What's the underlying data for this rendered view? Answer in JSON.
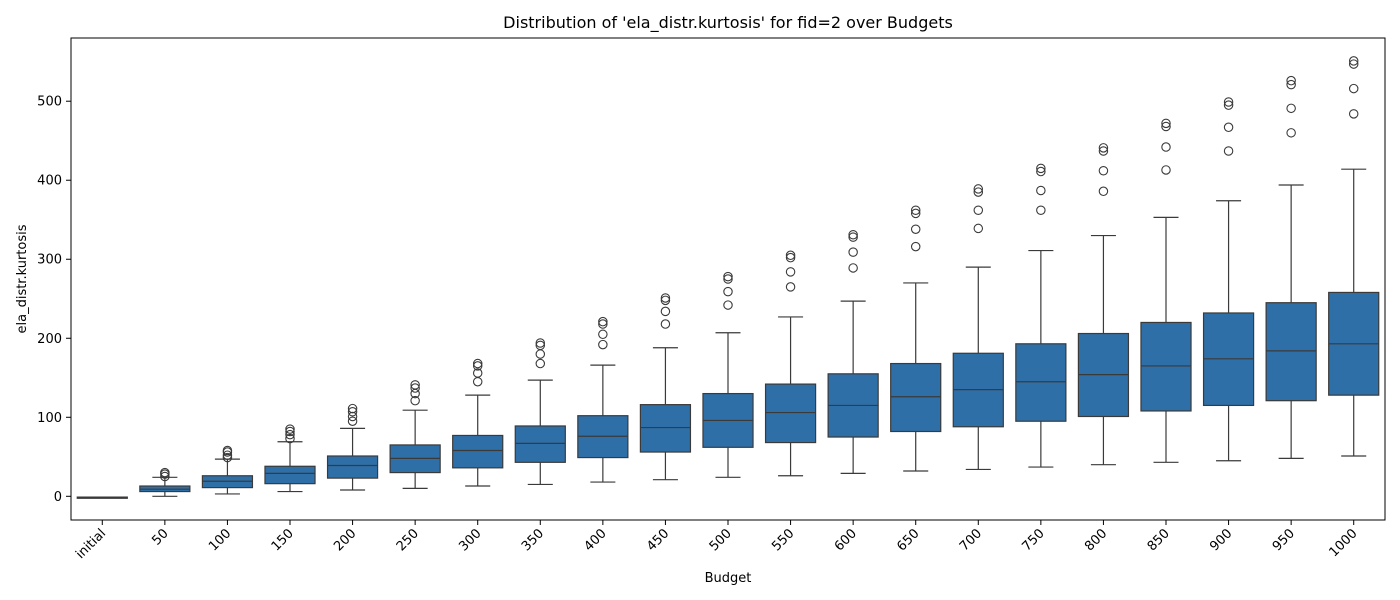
{
  "chart_data": {
    "type": "box",
    "title": "Distribution of 'ela_distr.kurtosis' for fid=2 over Budgets",
    "xlabel": "Budget",
    "ylabel": "ela_distr.kurtosis",
    "ylim": [
      -30,
      580
    ],
    "yticks": [
      0,
      100,
      200,
      300,
      400,
      500
    ],
    "grid": false,
    "colors": {
      "box": "#2f6fa8",
      "line": "#3a3a3a"
    },
    "categories": [
      "initial",
      "50",
      "100",
      "150",
      "200",
      "250",
      "300",
      "350",
      "400",
      "450",
      "500",
      "550",
      "600",
      "650",
      "700",
      "750",
      "800",
      "850",
      "900",
      "950",
      "1000"
    ],
    "boxes": [
      {
        "min": -1,
        "q1": -1,
        "median": -1,
        "q3": -1,
        "max": -1,
        "outliers": []
      },
      {
        "min": 0,
        "q1": 6,
        "median": 9,
        "q3": 13,
        "max": 24,
        "outliers": [
          25,
          28,
          30
        ]
      },
      {
        "min": 3,
        "q1": 11,
        "median": 19,
        "q3": 26,
        "max": 47,
        "outliers": [
          49,
          52,
          56,
          58
        ]
      },
      {
        "min": 6,
        "q1": 16,
        "median": 29,
        "q3": 38,
        "max": 69,
        "outliers": [
          73,
          78,
          82,
          85
        ]
      },
      {
        "min": 8,
        "q1": 23,
        "median": 39,
        "q3": 51,
        "max": 86,
        "outliers": [
          95,
          101,
          107,
          111
        ]
      },
      {
        "min": 10,
        "q1": 30,
        "median": 48,
        "q3": 65,
        "max": 109,
        "outliers": [
          121,
          130,
          137,
          141
        ]
      },
      {
        "min": 13,
        "q1": 36,
        "median": 58,
        "q3": 77,
        "max": 128,
        "outliers": [
          145,
          156,
          165,
          168
        ]
      },
      {
        "min": 15,
        "q1": 43,
        "median": 67,
        "q3": 89,
        "max": 147,
        "outliers": [
          168,
          180,
          191,
          194
        ]
      },
      {
        "min": 18,
        "q1": 49,
        "median": 76,
        "q3": 102,
        "max": 166,
        "outliers": [
          192,
          205,
          218,
          221
        ]
      },
      {
        "min": 21,
        "q1": 56,
        "median": 87,
        "q3": 116,
        "max": 188,
        "outliers": [
          218,
          234,
          248,
          251
        ]
      },
      {
        "min": 24,
        "q1": 62,
        "median": 96,
        "q3": 130,
        "max": 207,
        "outliers": [
          242,
          259,
          275,
          278
        ]
      },
      {
        "min": 26,
        "q1": 68,
        "median": 106,
        "q3": 142,
        "max": 227,
        "outliers": [
          265,
          284,
          302,
          305
        ]
      },
      {
        "min": 29,
        "q1": 75,
        "median": 115,
        "q3": 155,
        "max": 247,
        "outliers": [
          289,
          309,
          328,
          331
        ]
      },
      {
        "min": 32,
        "q1": 82,
        "median": 126,
        "q3": 168,
        "max": 270,
        "outliers": [
          316,
          338,
          358,
          362
        ]
      },
      {
        "min": 34,
        "q1": 88,
        "median": 135,
        "q3": 181,
        "max": 290,
        "outliers": [
          339,
          362,
          385,
          389
        ]
      },
      {
        "min": 37,
        "q1": 95,
        "median": 145,
        "q3": 193,
        "max": 311,
        "outliers": [
          362,
          387,
          411,
          415
        ]
      },
      {
        "min": 40,
        "q1": 101,
        "median": 154,
        "q3": 206,
        "max": 330,
        "outliers": [
          386,
          412,
          437,
          441
        ]
      },
      {
        "min": 43,
        "q1": 108,
        "median": 165,
        "q3": 220,
        "max": 353,
        "outliers": [
          413,
          442,
          468,
          472
        ]
      },
      {
        "min": 45,
        "q1": 115,
        "median": 174,
        "q3": 232,
        "max": 374,
        "outliers": [
          437,
          467,
          495,
          499
        ]
      },
      {
        "min": 48,
        "q1": 121,
        "median": 184,
        "q3": 245,
        "max": 394,
        "outliers": [
          460,
          491,
          521,
          526
        ]
      },
      {
        "min": 51,
        "q1": 128,
        "median": 193,
        "q3": 258,
        "max": 414,
        "outliers": [
          484,
          516,
          547,
          551
        ]
      }
    ]
  }
}
